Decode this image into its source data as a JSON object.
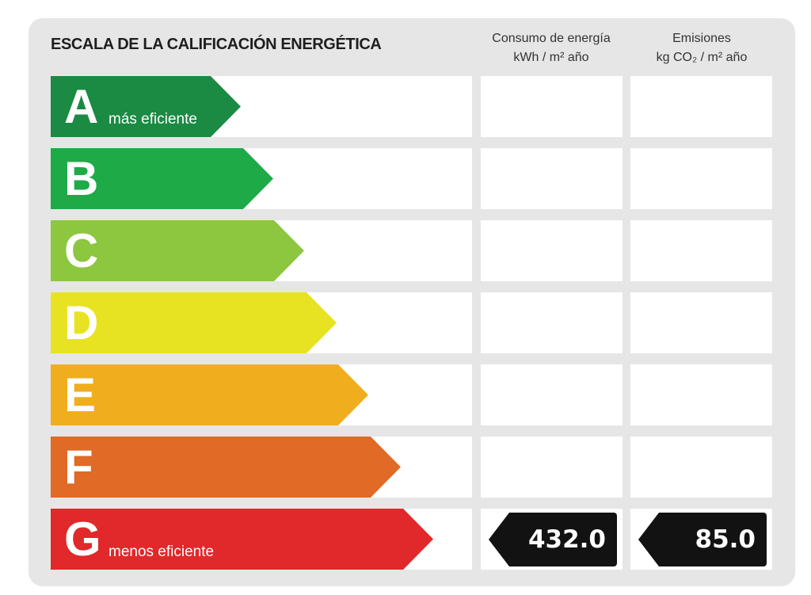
{
  "label": {
    "title": "ESCALA DE LA CALIFICACIÓN ENERGÉTICA",
    "consumo_header": {
      "line1": "Consumo de energía",
      "line2": "kWh / m² año"
    },
    "emisiones_header": {
      "line1": "Emisiones",
      "line2": "kg CO₂ / m² año"
    },
    "classes": [
      {
        "letter": "A",
        "description": "más eficiente",
        "color": "#1b8a43"
      },
      {
        "letter": "B",
        "description": "",
        "color": "#1faa48"
      },
      {
        "letter": "C",
        "description": "",
        "color": "#8dc63f"
      },
      {
        "letter": "D",
        "description": "",
        "color": "#e8e322"
      },
      {
        "letter": "E",
        "description": "",
        "color": "#f0ae1e"
      },
      {
        "letter": "F",
        "description": "",
        "color": "#e06a26"
      },
      {
        "letter": "G",
        "description": "menos eficiente",
        "color": "#e1282a"
      }
    ],
    "rating": {
      "class": "G",
      "consumo_value": "432.0",
      "emisiones_value": "85.0"
    }
  }
}
